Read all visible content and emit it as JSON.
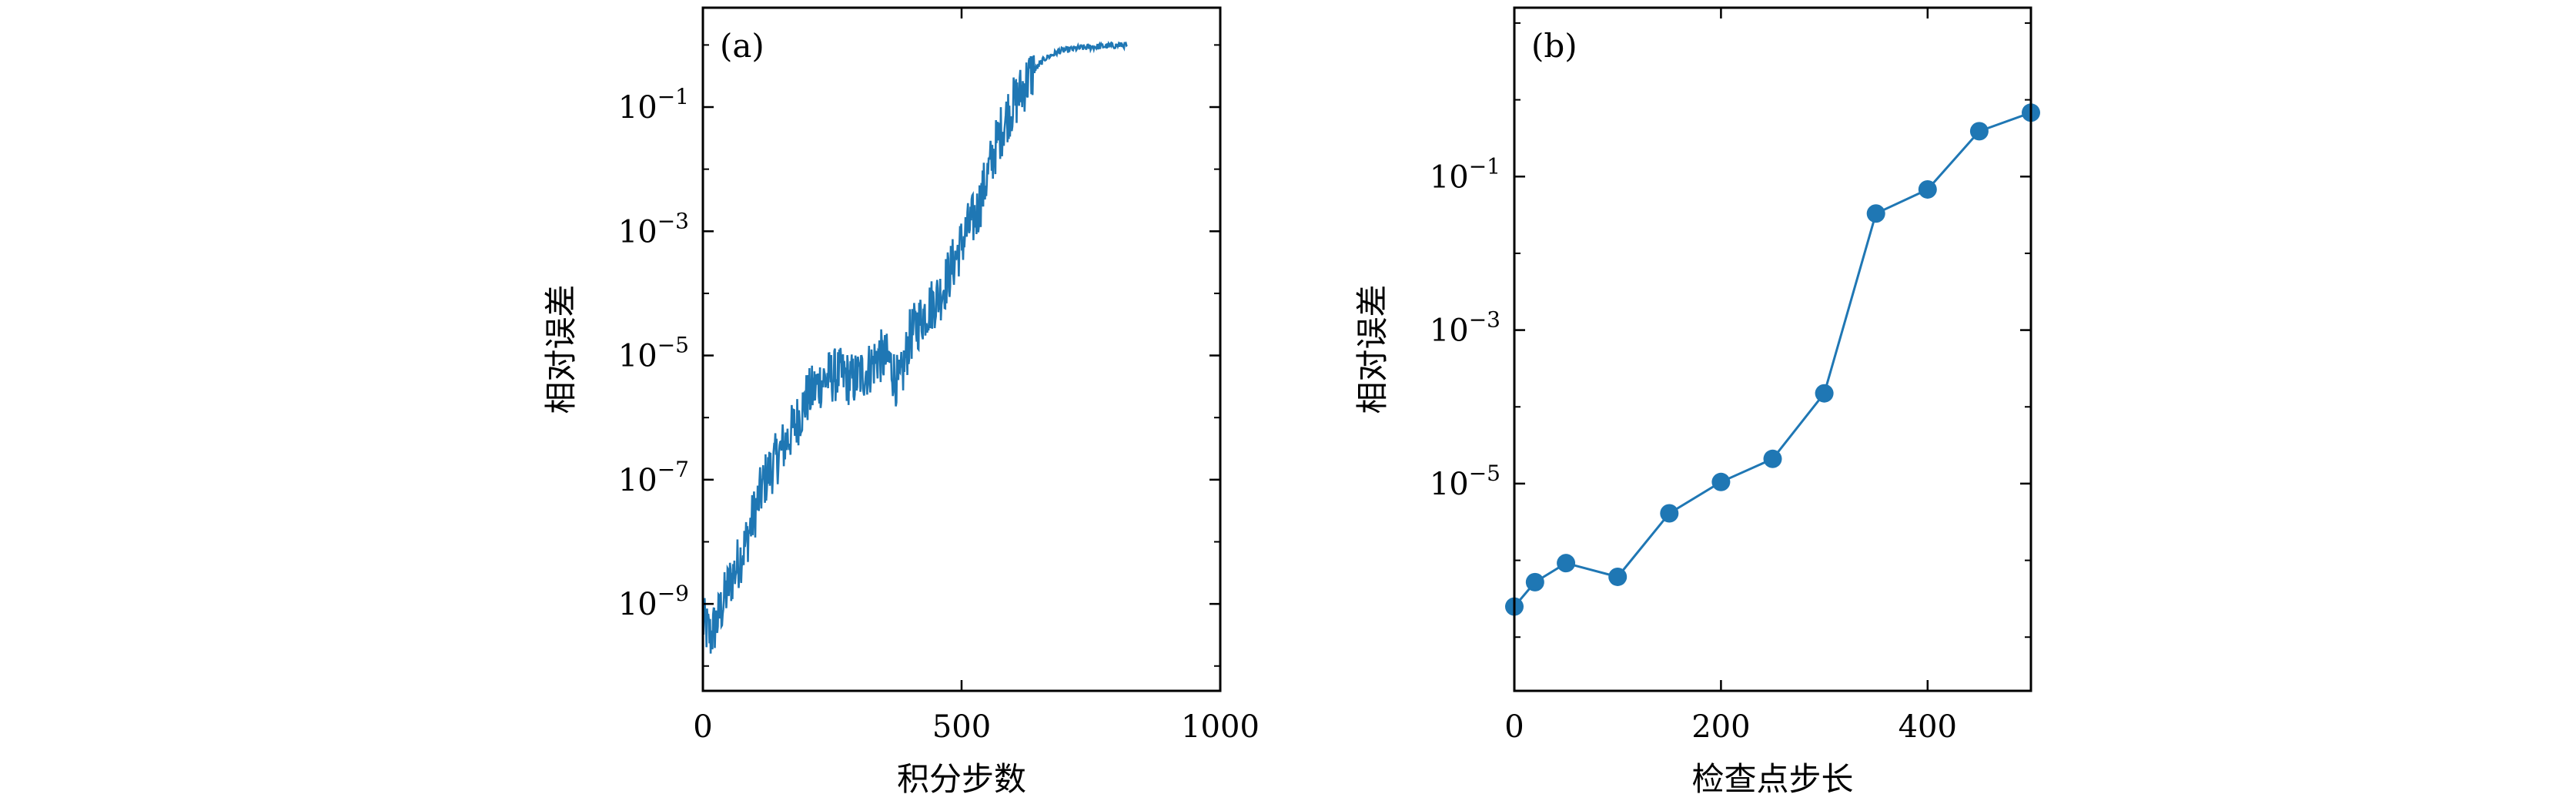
{
  "chart_data": [
    {
      "type": "line",
      "panel_label": "(a)",
      "xlabel": "积分步数",
      "ylabel": "相对误差",
      "xlim": [
        0,
        1000
      ],
      "ylim_log10": [
        -10.4,
        0.6
      ],
      "yscale": "log",
      "x_ticks": [
        "0",
        "500",
        "1000"
      ],
      "y_ticks": [
        {
          "base": "10",
          "exp": "−1"
        },
        {
          "base": "10",
          "exp": "−3"
        },
        {
          "base": "10",
          "exp": "−5"
        },
        {
          "base": "10",
          "exp": "−7"
        },
        {
          "base": "10",
          "exp": "−9"
        }
      ],
      "series": [
        {
          "color": "#1f77b4",
          "noisy": true,
          "x": [
            0,
            15,
            30,
            50,
            80,
            100,
            120,
            140,
            160,
            180,
            200,
            230,
            260,
            290,
            320,
            340,
            360,
            380,
            400,
            430,
            460,
            490,
            510,
            530,
            550,
            570,
            590,
            610,
            630,
            660,
            690,
            730,
            770,
            820
          ],
          "y": [
            5e-10,
            3e-10,
            6e-10,
            2e-09,
            8e-09,
            3e-08,
            1e-07,
            2e-07,
            4e-07,
            8e-07,
            2e-06,
            4e-06,
            5e-06,
            4e-06,
            6e-06,
            1e-05,
            8e-06,
            3e-06,
            2e-05,
            5e-05,
            0.0001,
            0.0004,
            0.001,
            0.002,
            0.008,
            0.03,
            0.08,
            0.15,
            0.3,
            0.6,
            0.8,
            0.9,
            0.95,
            1.0
          ]
        }
      ]
    },
    {
      "type": "line",
      "panel_label": "(b)",
      "xlabel": "检查点步长",
      "ylabel": "相对误差",
      "xlim": [
        0,
        500
      ],
      "ylim_log10": [
        -7.7,
        1.2
      ],
      "yscale": "log",
      "x_ticks": [
        "0",
        "200",
        "400"
      ],
      "y_ticks": [
        {
          "base": "10",
          "exp": "−1"
        },
        {
          "base": "10",
          "exp": "−3"
        },
        {
          "base": "10",
          "exp": "−5"
        }
      ],
      "series": [
        {
          "color": "#1f77b4",
          "markers": true,
          "x": [
            0,
            20,
            50,
            100,
            150,
            200,
            250,
            300,
            350,
            400,
            450,
            500
          ],
          "y": [
            2.5e-07,
            5.2e-07,
            9.2e-07,
            6.1e-07,
            4.1e-06,
            1.05e-05,
            2.1e-05,
            0.00015,
            0.033,
            0.068,
            0.39,
            0.68
          ]
        }
      ]
    }
  ]
}
